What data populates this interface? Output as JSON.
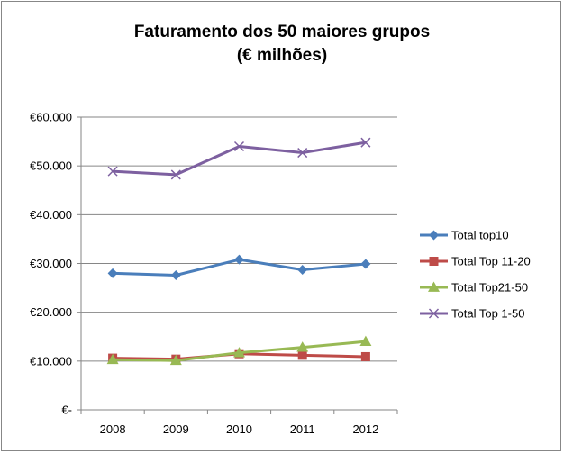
{
  "chart_data": {
    "type": "line",
    "title_lines": [
      "Faturamento dos 50 maiores grupos",
      "(€ milhões)"
    ],
    "categories": [
      "2008",
      "2009",
      "2010",
      "2011",
      "2012"
    ],
    "ylim": [
      0,
      60000
    ],
    "yticks": [
      0,
      10000,
      20000,
      30000,
      40000,
      50000,
      60000
    ],
    "ytick_labels": [
      "€-",
      "€10.000",
      "€20.000",
      "€30.000",
      "€40.000",
      "€50.000",
      "€60.000"
    ],
    "grid": true,
    "legend_position": "right",
    "series": [
      {
        "name": "Total top10",
        "color": "#4a7ebb",
        "marker": "diamond",
        "values": [
          28000,
          27600,
          30800,
          28700,
          29900
        ]
      },
      {
        "name": "Total Top 11-20",
        "color": "#be4b48",
        "marker": "square",
        "values": [
          10600,
          10400,
          11500,
          11200,
          10900
        ]
      },
      {
        "name": "Total Top21-50",
        "color": "#98b954",
        "marker": "triangle",
        "values": [
          10300,
          10100,
          11700,
          12800,
          14000
        ]
      },
      {
        "name": "Total Top 1-50",
        "color": "#7d60a0",
        "marker": "x",
        "values": [
          48900,
          48200,
          54000,
          52700,
          54800
        ]
      }
    ]
  }
}
